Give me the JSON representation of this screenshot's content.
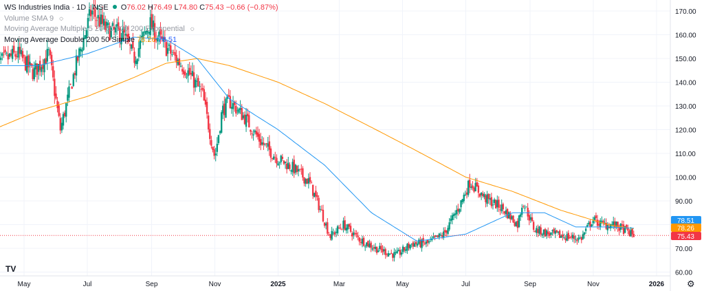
{
  "legend": {
    "symbol": "WS Industries India · 1D · NSE",
    "o_label": "O",
    "o": "76.02",
    "h_label": "H",
    "h": "76.49",
    "l_label": "L",
    "l": "74.80",
    "c_label": "C",
    "c": "75.43",
    "change": "−0.66 (−0.87%)",
    "volume_label": "Volume SMA 9",
    "ma_multiple_label": "Moving Average Multiple 5 20 50 100 200 Exponential",
    "ma_double_label": "Moving Average Double 200 50 Simple",
    "ma200_value": "78.26",
    "ma50_value": "78.51"
  },
  "logo": "TV",
  "colors": {
    "up": "#089981",
    "down": "#f23645",
    "ma200": "#ff9800",
    "ma50": "#2196f3",
    "last": "#f23645",
    "grid": "#f0f3fa",
    "text": "#131722"
  },
  "chart_data": {
    "type": "candlestick",
    "x_ticks": [
      "May",
      "Jul",
      "Sep",
      "Nov",
      "2025",
      "Mar",
      "May",
      "Jul",
      "Sep",
      "Nov",
      "2026"
    ],
    "y_ticks": [
      "170.00",
      "160.00",
      "150.00",
      "140.00",
      "130.00",
      "120.00",
      "110.00",
      "100.00",
      "90.00",
      "80.00",
      "70.00",
      "60.00"
    ],
    "ylim": [
      60,
      174
    ],
    "price_badges": [
      {
        "label": "78.51",
        "value": 78.51,
        "color": "#2196f3"
      },
      {
        "label": "78.26",
        "value": 78.26,
        "color": "#ff9800"
      },
      {
        "label": "75.43",
        "value": 75.43,
        "color": "#f23645"
      }
    ],
    "close_anchors": [
      [
        "2024-04-05",
        148
      ],
      [
        "2024-04-25",
        152
      ],
      [
        "2024-05-10",
        144
      ],
      [
        "2024-05-25",
        152
      ],
      [
        "2024-06-05",
        120
      ],
      [
        "2024-06-20",
        147
      ],
      [
        "2024-07-05",
        170
      ],
      [
        "2024-07-20",
        162
      ],
      [
        "2024-08-05",
        160
      ],
      [
        "2024-08-15",
        150
      ],
      [
        "2024-08-30",
        165
      ],
      [
        "2024-09-05",
        160
      ],
      [
        "2024-09-20",
        152
      ],
      [
        "2024-10-05",
        145
      ],
      [
        "2024-10-20",
        135
      ],
      [
        "2024-11-01",
        108
      ],
      [
        "2024-11-08",
        128
      ],
      [
        "2024-11-15",
        132
      ],
      [
        "2024-11-30",
        125
      ],
      [
        "2024-12-15",
        115
      ],
      [
        "2024-12-31",
        108
      ],
      [
        "2025-01-15",
        104
      ],
      [
        "2025-01-31",
        98
      ],
      [
        "2025-02-12",
        85
      ],
      [
        "2025-02-20",
        75
      ],
      [
        "2025-03-05",
        80
      ],
      [
        "2025-03-20",
        74
      ],
      [
        "2025-04-05",
        70
      ],
      [
        "2025-04-25",
        67
      ],
      [
        "2025-05-10",
        72
      ],
      [
        "2025-05-25",
        72
      ],
      [
        "2025-06-10",
        76
      ],
      [
        "2025-06-25",
        88
      ],
      [
        "2025-07-05",
        98
      ],
      [
        "2025-07-20",
        91
      ],
      [
        "2025-08-05",
        87
      ],
      [
        "2025-08-20",
        80
      ],
      [
        "2025-08-25",
        90
      ],
      [
        "2025-09-05",
        78
      ],
      [
        "2025-09-20",
        76
      ],
      [
        "2025-10-05",
        75
      ],
      [
        "2025-10-20",
        74
      ],
      [
        "2025-10-31",
        82
      ],
      [
        "2025-11-10",
        80
      ],
      [
        "2025-11-20",
        80
      ],
      [
        "2025-11-30",
        78
      ],
      [
        "2025-12-10",
        75.43
      ]
    ],
    "ma200_anchors": [
      [
        "2024-04-01",
        120
      ],
      [
        "2024-05-15",
        128
      ],
      [
        "2024-07-01",
        134
      ],
      [
        "2024-08-15",
        142
      ],
      [
        "2024-09-15",
        148
      ],
      [
        "2024-10-15",
        150
      ],
      [
        "2024-11-15",
        147
      ],
      [
        "2025-01-01",
        140
      ],
      [
        "2025-02-15",
        131
      ],
      [
        "2025-04-01",
        121
      ],
      [
        "2025-05-15",
        111
      ],
      [
        "2025-07-01",
        100
      ],
      [
        "2025-08-15",
        94
      ],
      [
        "2025-10-01",
        86
      ],
      [
        "2025-11-15",
        80
      ],
      [
        "2025-12-10",
        78.26
      ]
    ],
    "ma50_anchors": [
      [
        "2024-04-01",
        147
      ],
      [
        "2024-05-15",
        147
      ],
      [
        "2024-07-01",
        152
      ],
      [
        "2024-08-15",
        159
      ],
      [
        "2024-09-15",
        158
      ],
      [
        "2024-10-15",
        150
      ],
      [
        "2024-11-15",
        133
      ],
      [
        "2025-01-01",
        120
      ],
      [
        "2025-02-15",
        105
      ],
      [
        "2025-04-01",
        85
      ],
      [
        "2025-05-15",
        73
      ],
      [
        "2025-07-01",
        76
      ],
      [
        "2025-08-15",
        85
      ],
      [
        "2025-09-15",
        85
      ],
      [
        "2025-10-15",
        79
      ],
      [
        "2025-11-15",
        79
      ],
      [
        "2025-12-10",
        78.51
      ]
    ]
  }
}
